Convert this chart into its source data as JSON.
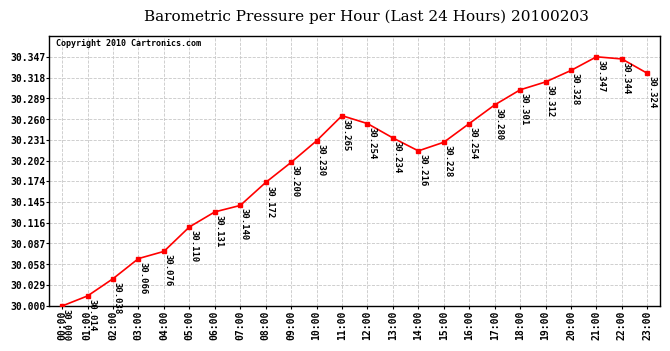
{
  "title": "Barometric Pressure per Hour (Last 24 Hours) 20100203",
  "copyright": "Copyright 2010 Cartronics.com",
  "hours": [
    "00:00",
    "01:00",
    "02:00",
    "03:00",
    "04:00",
    "05:00",
    "06:00",
    "07:00",
    "08:00",
    "09:00",
    "10:00",
    "11:00",
    "12:00",
    "13:00",
    "14:00",
    "15:00",
    "16:00",
    "17:00",
    "18:00",
    "19:00",
    "20:00",
    "21:00",
    "22:00",
    "23:00"
  ],
  "values": [
    30.0,
    30.014,
    30.038,
    30.066,
    30.076,
    30.11,
    30.131,
    30.14,
    30.172,
    30.2,
    30.23,
    30.265,
    30.254,
    30.234,
    30.216,
    30.228,
    30.254,
    30.28,
    30.301,
    30.312,
    30.328,
    30.347,
    30.344,
    30.324
  ],
  "ylim_min": 30.0,
  "ylim_max": 30.376,
  "yticks": [
    30.0,
    30.029,
    30.058,
    30.087,
    30.116,
    30.145,
    30.174,
    30.202,
    30.231,
    30.26,
    30.289,
    30.318,
    30.347
  ],
  "line_color": "#ff0000",
  "marker_color": "#ff0000",
  "marker_size": 3,
  "bg_color": "#ffffff",
  "plot_bg_color": "#ffffff",
  "grid_color": "#c8c8c8",
  "title_fontsize": 11,
  "axis_fontsize": 7,
  "annotation_fontsize": 6.5,
  "annotation_rotation": 270
}
